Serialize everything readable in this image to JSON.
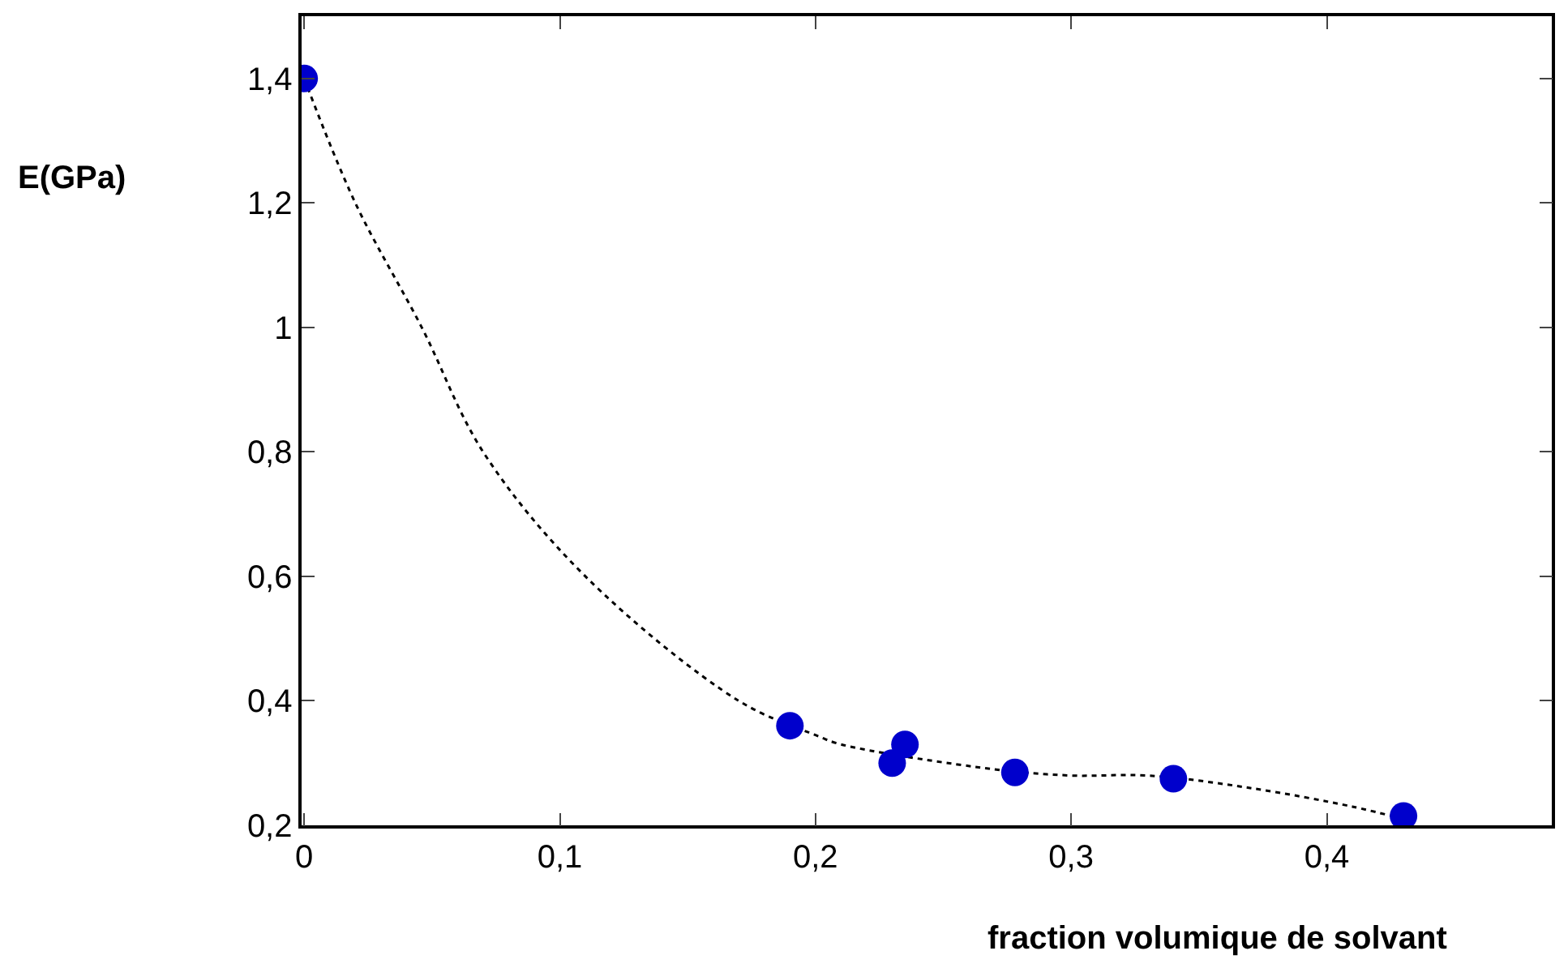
{
  "chart_data": {
    "type": "scatter",
    "xlabel": "fraction volumique de solvant",
    "ylabel": "E(GPa)",
    "xlim": [
      -0.001,
      0.488
    ],
    "ylim": [
      0.2,
      1.5
    ],
    "xticks": [
      0,
      {
        "value": 0.1,
        "label": "0,1"
      },
      {
        "value": 0.2,
        "label": "0,2"
      },
      {
        "value": 0.3,
        "label": "0,3"
      },
      {
        "value": 0.4,
        "label": "0,4"
      }
    ],
    "yticks": [
      {
        "value": 0.2,
        "label": "0,2"
      },
      {
        "value": 0.4,
        "label": "0,4"
      },
      {
        "value": 0.6,
        "label": "0,6"
      },
      {
        "value": 0.8,
        "label": "0,8"
      },
      1,
      {
        "value": 1.2,
        "label": "1,2"
      },
      {
        "value": 1.4,
        "label": "1,4"
      }
    ],
    "series": [
      {
        "type": "line",
        "color": "#000000",
        "line_style": "dotted",
        "marker": "none",
        "x": [
          0,
          0.02,
          0.046,
          0.07,
          0.11,
          0.17,
          0.2,
          0.21,
          0.27,
          0.3,
          0.33,
          0.37,
          0.41,
          0.43
        ],
        "values": [
          1.4,
          1.2,
          1.0,
          0.8,
          0.6,
          0.4,
          0.345,
          0.33,
          0.29,
          0.28,
          0.28,
          0.26,
          0.23,
          0.21
        ]
      },
      {
        "color": "#0000cc",
        "marker": "circle",
        "x": [
          0,
          0.19,
          0.23,
          0.235,
          0.278,
          0.34,
          0.43
        ],
        "values": [
          1.4,
          0.36,
          0.3,
          0.33,
          0.285,
          0.275,
          0.215
        ]
      }
    ]
  }
}
